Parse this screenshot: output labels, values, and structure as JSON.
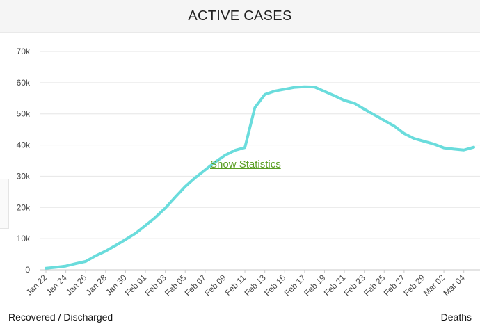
{
  "header": {
    "title": "ACTIVE CASES"
  },
  "overlay": {
    "show_statistics": "Show Statistics"
  },
  "footer": {
    "left_link": "Recovered / Discharged",
    "right_link": "Deaths"
  },
  "colors": {
    "line": "#6adcdc",
    "grid": "#e6e6e6",
    "link": "#5a9e23",
    "header_bg": "#f5f5f5"
  },
  "chart_data": {
    "type": "line",
    "title": "ACTIVE CASES",
    "xlabel": "",
    "ylabel": "",
    "grid": true,
    "legend": "none",
    "ylim": [
      0,
      70000
    ],
    "yticks": [
      0,
      10000,
      20000,
      30000,
      40000,
      50000,
      60000,
      70000
    ],
    "ytick_labels": [
      "0",
      "10k",
      "20k",
      "30k",
      "40k",
      "50k",
      "60k",
      "70k"
    ],
    "xtick_labels": [
      "Jan 22",
      "Jan 24",
      "Jan 26",
      "Jan 28",
      "Jan 30",
      "Feb 01",
      "Feb 03",
      "Feb 05",
      "Feb 07",
      "Feb 09",
      "Feb 11",
      "Feb 13",
      "Feb 15",
      "Feb 17",
      "Feb 19",
      "Feb 21",
      "Feb 23",
      "Feb 25",
      "Feb 27",
      "Feb 29",
      "Mar 02",
      "Mar 04"
    ],
    "x": [
      "Jan 22",
      "Jan 23",
      "Jan 24",
      "Jan 25",
      "Jan 26",
      "Jan 27",
      "Jan 28",
      "Jan 29",
      "Jan 30",
      "Jan 31",
      "Feb 01",
      "Feb 02",
      "Feb 03",
      "Feb 04",
      "Feb 05",
      "Feb 06",
      "Feb 07",
      "Feb 08",
      "Feb 09",
      "Feb 10",
      "Feb 11",
      "Feb 12",
      "Feb 13",
      "Feb 14",
      "Feb 15",
      "Feb 16",
      "Feb 17",
      "Feb 18",
      "Feb 19",
      "Feb 20",
      "Feb 21",
      "Feb 22",
      "Feb 23",
      "Feb 24",
      "Feb 25",
      "Feb 26",
      "Feb 27",
      "Feb 28",
      "Feb 29",
      "Mar 01",
      "Mar 02",
      "Mar 03",
      "Mar 04",
      "Mar 05"
    ],
    "series": [
      {
        "values": [
          500,
          800,
          1200,
          2000,
          2700,
          4500,
          6000,
          7800,
          9700,
          11700,
          14200,
          16800,
          19800,
          23300,
          26700,
          29500,
          32000,
          34500,
          36700,
          38300,
          39200,
          52000,
          56200,
          57300,
          57900,
          58500,
          58700,
          58600,
          57200,
          55800,
          54300,
          53400,
          51500,
          49700,
          47900,
          46100,
          43700,
          42100,
          41200,
          40300,
          39100,
          38700,
          38400,
          39300
        ]
      }
    ]
  }
}
